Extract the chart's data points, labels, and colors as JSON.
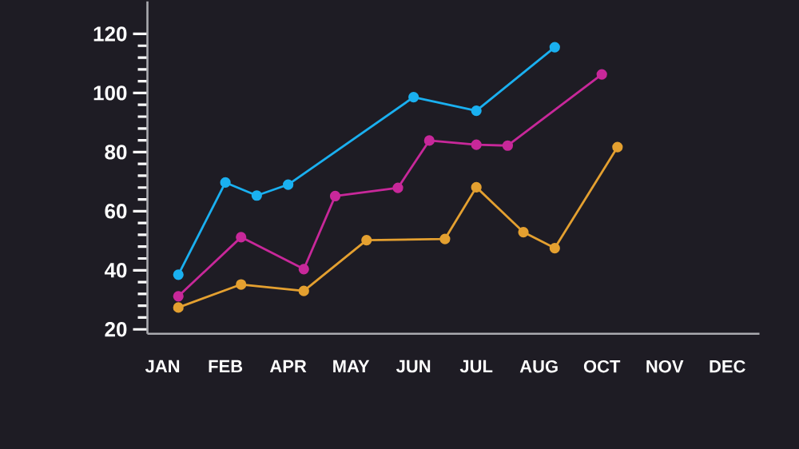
{
  "chart_data": {
    "type": "line",
    "categories": [
      "JAN",
      null,
      null,
      null,
      "FEB",
      null,
      null,
      null,
      "APR",
      null,
      null,
      null,
      "MAY",
      null,
      null,
      null,
      "JUN",
      null,
      null,
      null,
      "JUL",
      null,
      null,
      null,
      "AUG",
      null,
      null,
      null,
      "OCT",
      null,
      null,
      null,
      "NOV",
      null,
      null,
      null,
      "DEC"
    ],
    "series": [
      {
        "color": "#1ab0f0",
        "values": [
          null,
          38.5,
          null,
          null,
          69.7,
          null,
          65.3,
          null,
          69,
          null,
          null,
          null,
          null,
          null,
          null,
          null,
          98.6,
          null,
          null,
          null,
          94,
          null,
          null,
          null,
          null,
          115.5,
          null,
          null,
          null,
          null,
          null,
          null,
          null,
          null,
          null,
          null,
          null
        ]
      },
      {
        "color": "#c8289a",
        "values": [
          null,
          31.2,
          null,
          null,
          null,
          51.2,
          null,
          null,
          null,
          40.4,
          null,
          65.1,
          null,
          null,
          null,
          67.9,
          null,
          83.9,
          null,
          null,
          82.5,
          null,
          82.2,
          null,
          null,
          null,
          null,
          null,
          106.3,
          null,
          null,
          null,
          null,
          null,
          null,
          null,
          null
        ]
      },
      {
        "color": "#e4a030",
        "values": [
          null,
          27.4,
          null,
          null,
          null,
          35.2,
          null,
          null,
          null,
          33,
          null,
          null,
          null,
          50.2,
          null,
          null,
          null,
          null,
          50.6,
          null,
          68.1,
          null,
          null,
          52.9,
          null,
          47.5,
          null,
          null,
          null,
          81.7,
          null,
          null,
          null,
          null,
          null,
          null,
          null
        ]
      }
    ],
    "ylim": [
      18.5,
      131
    ],
    "yticks": [
      20,
      40,
      60,
      80,
      100,
      120
    ],
    "grid": false,
    "marker": "circle",
    "line_style": "solid"
  }
}
